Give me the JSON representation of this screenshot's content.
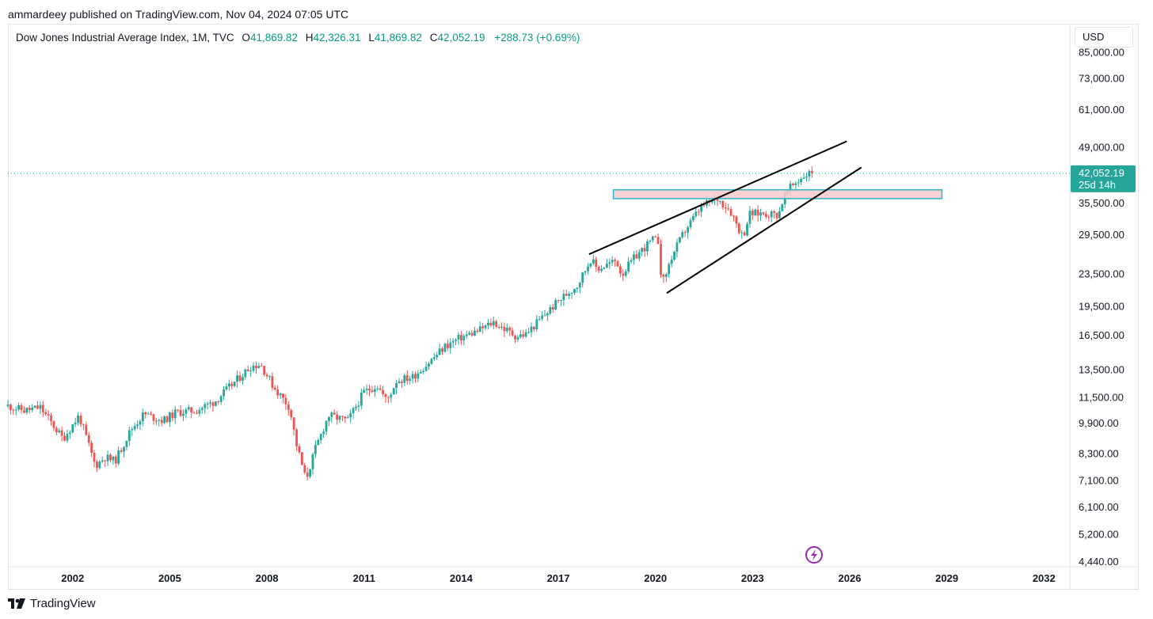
{
  "header": {
    "publisher_line": "ammardeey published on TradingView.com, Nov 04, 2024 07:05 UTC"
  },
  "legend": {
    "symbol": "Dow Jones Industrial Average Index, 1M, TVC",
    "open_label": "O",
    "open": "41,869.82",
    "high_label": "H",
    "high": "42,326.31",
    "low_label": "L",
    "low": "41,869.82",
    "close_label": "C",
    "close": "42,052.19",
    "change": "+288.73 (+0.69%)"
  },
  "currency": "USD",
  "price_tag": {
    "price": "42,052.19",
    "countdown": "25d 14h"
  },
  "footer": {
    "brand": "TradingView"
  },
  "colors": {
    "up": "#26a69a",
    "down": "#ef5350",
    "accent": "#089981",
    "zone_fill": "#f8c9cb",
    "zone_border": "#29b6c8",
    "flash": "#9c27b0"
  },
  "icons": {
    "flash": "lightning-icon",
    "logo": "tradingview-logo-icon"
  },
  "chart_data": {
    "type": "candlestick",
    "title": "Dow Jones Industrial Average Index, 1M, TVC",
    "y_scale": "log",
    "ylim": [
      4300,
      100000
    ],
    "xlim": [
      2000.0,
      2032.8
    ],
    "y_ticks": [
      "85,000.00",
      "73,000.00",
      "61,000.00",
      "49,000.00",
      "35,500.00",
      "29,500.00",
      "23,500.00",
      "19,500.00",
      "16,500.00",
      "13,500.00",
      "11,500.00",
      "9,900.00",
      "8,300.00",
      "7,100.00",
      "6,100.00",
      "5,200.00",
      "4,440.00"
    ],
    "x_ticks": [
      "2002",
      "2005",
      "2008",
      "2011",
      "2014",
      "2017",
      "2020",
      "2023",
      "2026",
      "2029",
      "2032"
    ],
    "last_price": 42052.19,
    "series_points": [
      [
        2000.0,
        10900
      ],
      [
        2000.5,
        10600
      ],
      [
        2001.0,
        10800
      ],
      [
        2001.7,
        9000
      ],
      [
        2002.2,
        10300
      ],
      [
        2002.7,
        7700
      ],
      [
        2003.0,
        8100
      ],
      [
        2003.3,
        7900
      ],
      [
        2003.8,
        9500
      ],
      [
        2004.2,
        10400
      ],
      [
        2004.8,
        10000
      ],
      [
        2005.2,
        10500
      ],
      [
        2005.8,
        10600
      ],
      [
        2006.4,
        11200
      ],
      [
        2007.0,
        12500
      ],
      [
        2007.5,
        13700
      ],
      [
        2007.8,
        13900
      ],
      [
        2008.2,
        12200
      ],
      [
        2008.7,
        10800
      ],
      [
        2008.9,
        8800
      ],
      [
        2009.2,
        7100
      ],
      [
        2009.5,
        8500
      ],
      [
        2009.9,
        10300
      ],
      [
        2010.5,
        10000
      ],
      [
        2011.0,
        11800
      ],
      [
        2011.4,
        12300
      ],
      [
        2011.7,
        11200
      ],
      [
        2012.0,
        12600
      ],
      [
        2012.5,
        12900
      ],
      [
        2013.0,
        14000
      ],
      [
        2013.5,
        15400
      ],
      [
        2014.0,
        16200
      ],
      [
        2014.5,
        16800
      ],
      [
        2015.0,
        17700
      ],
      [
        2015.7,
        16300
      ],
      [
        2016.0,
        16500
      ],
      [
        2016.5,
        18200
      ],
      [
        2017.0,
        20000
      ],
      [
        2017.6,
        22000
      ],
      [
        2018.0,
        25500
      ],
      [
        2018.2,
        24100
      ],
      [
        2018.8,
        25300
      ],
      [
        2018.95,
        23300
      ],
      [
        2019.4,
        26000
      ],
      [
        2019.9,
        28500
      ],
      [
        2020.1,
        28300
      ],
      [
        2020.2,
        21900
      ],
      [
        2020.5,
        25800
      ],
      [
        2020.9,
        30000
      ],
      [
        2021.4,
        34400
      ],
      [
        2021.9,
        36300
      ],
      [
        2022.3,
        34000
      ],
      [
        2022.7,
        29000
      ],
      [
        2022.9,
        33100
      ],
      [
        2023.3,
        33300
      ],
      [
        2023.8,
        33000
      ],
      [
        2023.95,
        36300
      ],
      [
        2024.2,
        38900
      ],
      [
        2024.6,
        41500
      ],
      [
        2024.83,
        42052
      ]
    ],
    "annotations": {
      "upper_trendline": [
        [
          2017.95,
          26300
        ],
        [
          2025.91,
          50600
        ]
      ],
      "lower_trendline": [
        [
          2020.35,
          21000
        ],
        [
          2026.36,
          43500
        ]
      ],
      "horizontal_zone": {
        "x": [
          2018.7,
          2028.85
        ],
        "y": [
          36300,
          38200
        ]
      }
    }
  }
}
